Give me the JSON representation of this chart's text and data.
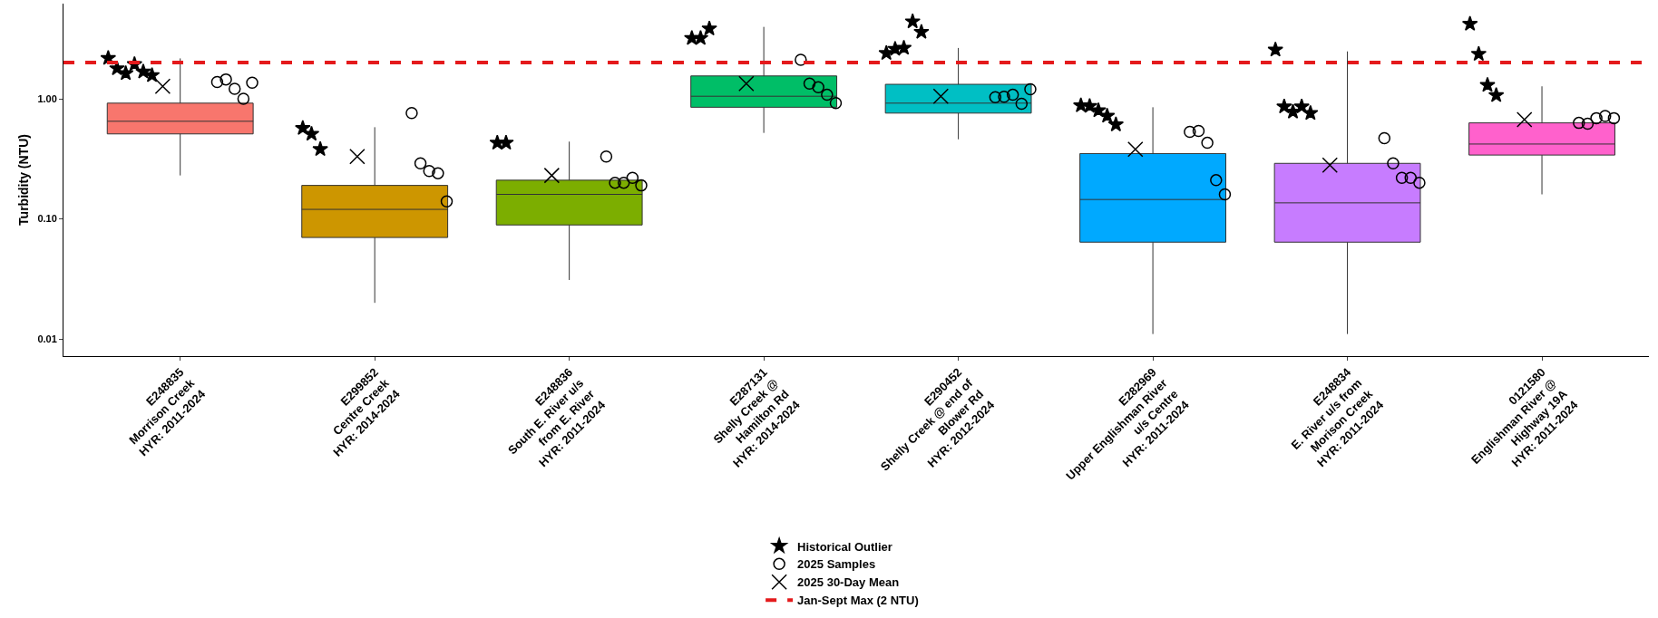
{
  "chart_data": {
    "type": "box",
    "ylabel": "Turbidity (NTU)",
    "categories": [
      "E248835\nMorrison Creek\nHYR: 2011-2024",
      "E299852\nCentre Creek\nHYR: 2014-2024",
      "E248836\nSouth E. River u/s\nfrom E. River\nHYR: 2011-2024",
      "E287131\nShelly Creek @\nHamilton Rd\nHYR: 2014-2024",
      "E290452\nShelly Creek @ end of\nBlower Rd\nHYR: 2012-2024",
      "E282969\nUpper Englishman River\nu/s Centre\nHYR: 2011-2024",
      "E248834\nE. River u/s from\nMorison Creek\nHYR: 2011-2024",
      "0121580\nEnglishman River @\nHighway 19A\nHYR: 2011-2024"
    ],
    "colors": [
      "#f8766d",
      "#cd9600",
      "#7cae00",
      "#00be67",
      "#00bfc4",
      "#00a9ff",
      "#c77cff",
      "#ff61cc"
    ],
    "boxes": [
      {
        "low": 0.23,
        "q1": 0.51,
        "median": 0.65,
        "q3": 0.92,
        "high": 2.17
      },
      {
        "low": 0.02,
        "q1": 0.07,
        "median": 0.12,
        "q3": 0.19,
        "high": 0.58
      },
      {
        "low": 0.031,
        "q1": 0.089,
        "median": 0.16,
        "q3": 0.21,
        "high": 0.44
      },
      {
        "low": 0.52,
        "q1": 0.85,
        "median": 1.05,
        "q3": 1.55,
        "high": 3.97
      },
      {
        "low": 0.46,
        "q1": 0.76,
        "median": 0.92,
        "q3": 1.32,
        "high": 2.65
      },
      {
        "low": 0.011,
        "q1": 0.064,
        "median": 0.145,
        "q3": 0.35,
        "high": 0.85
      },
      {
        "low": 0.011,
        "q1": 0.064,
        "median": 0.136,
        "q3": 0.29,
        "high": 2.48
      },
      {
        "low": 0.16,
        "q1": 0.34,
        "median": 0.42,
        "q3": 0.63,
        "high": 1.27
      }
    ],
    "series": [
      {
        "type": "scatter",
        "name": "Historical Outlier",
        "marker": "star",
        "color": "#000000",
        "x": [
          "E248835\nMorrison Creek\nHYR: 2011-2024",
          "E248835\nMorrison Creek\nHYR: 2011-2024",
          "E248835\nMorrison Creek\nHYR: 2011-2024",
          "E248835\nMorrison Creek\nHYR: 2011-2024",
          "E248835\nMorrison Creek\nHYR: 2011-2024",
          "E248835\nMorrison Creek\nHYR: 2011-2024",
          "E299852\nCentre Creek\nHYR: 2014-2024",
          "E299852\nCentre Creek\nHYR: 2014-2024",
          "E299852\nCentre Creek\nHYR: 2014-2024",
          "E248836\nSouth E. River u/s\nfrom E. River\nHYR: 2011-2024",
          "E248836\nSouth E. River u/s\nfrom E. River\nHYR: 2011-2024",
          "E287131\nShelly Creek @\nHamilton Rd\nHYR: 2014-2024",
          "E287131\nShelly Creek @\nHamilton Rd\nHYR: 2014-2024",
          "E287131\nShelly Creek @\nHamilton Rd\nHYR: 2014-2024",
          "E290452\nShelly Creek @ end of\nBlower Rd\nHYR: 2012-2024",
          "E290452\nShelly Creek @ end of\nBlower Rd\nHYR: 2012-2024",
          "E290452\nShelly Creek @ end of\nBlower Rd\nHYR: 2012-2024",
          "E290452\nShelly Creek @ end of\nBlower Rd\nHYR: 2012-2024",
          "E290452\nShelly Creek @ end of\nBlower Rd\nHYR: 2012-2024",
          "E282969\nUpper Englishman River\nu/s Centre\nHYR: 2011-2024",
          "E282969\nUpper Englishman River\nu/s Centre\nHYR: 2011-2024",
          "E282969\nUpper Englishman River\nu/s Centre\nHYR: 2011-2024",
          "E282969\nUpper Englishman River\nu/s Centre\nHYR: 2011-2024",
          "E282969\nUpper Englishman River\nu/s Centre\nHYR: 2011-2024",
          "E248834\nE. River u/s from\nMorison Creek\nHYR: 2011-2024",
          "E248834\nE. River u/s from\nMorison Creek\nHYR: 2011-2024",
          "E248834\nE. River u/s from\nMorison Creek\nHYR: 2011-2024",
          "E248834\nE. River u/s from\nMorison Creek\nHYR: 2011-2024",
          "E248834\nE. River u/s from\nMorison Creek\nHYR: 2011-2024",
          "0121580\nEnglishman River @\nHighway 19A\nHYR: 2011-2024",
          "0121580\nEnglishman River @\nHighway 19A\nHYR: 2011-2024",
          "0121580\nEnglishman River @\nHighway 19A\nHYR: 2011-2024",
          "0121580\nEnglishman River @\nHighway 19A\nHYR: 2011-2024"
        ],
        "values": [
          2.18,
          1.79,
          1.63,
          1.94,
          1.68,
          1.57,
          0.57,
          0.51,
          0.38,
          0.43,
          0.43,
          3.2,
          3.2,
          3.84,
          2.4,
          2.6,
          2.65,
          4.4,
          3.6,
          0.88,
          0.87,
          0.8,
          0.72,
          0.61,
          2.56,
          0.86,
          0.78,
          0.86,
          0.76,
          4.2,
          2.36,
          1.3,
          1.07
        ]
      },
      {
        "type": "scatter",
        "name": "2025 Samples",
        "marker": "circle",
        "color": "#000000",
        "x": [
          "E248835\nMorrison Creek\nHYR: 2011-2024",
          "E248835\nMorrison Creek\nHYR: 2011-2024",
          "E248835\nMorrison Creek\nHYR: 2011-2024",
          "E248835\nMorrison Creek\nHYR: 2011-2024",
          "E248835\nMorrison Creek\nHYR: 2011-2024",
          "E299852\nCentre Creek\nHYR: 2014-2024",
          "E299852\nCentre Creek\nHYR: 2014-2024",
          "E299852\nCentre Creek\nHYR: 2014-2024",
          "E299852\nCentre Creek\nHYR: 2014-2024",
          "E299852\nCentre Creek\nHYR: 2014-2024",
          "E248836\nSouth E. River u/s\nfrom E. River\nHYR: 2011-2024",
          "E248836\nSouth E. River u/s\nfrom E. River\nHYR: 2011-2024",
          "E248836\nSouth E. River u/s\nfrom E. River\nHYR: 2011-2024",
          "E248836\nSouth E. River u/s\nfrom E. River\nHYR: 2011-2024",
          "E248836\nSouth E. River u/s\nfrom E. River\nHYR: 2011-2024",
          "E287131\nShelly Creek @\nHamilton Rd\nHYR: 2014-2024",
          "E287131\nShelly Creek @\nHamilton Rd\nHYR: 2014-2024",
          "E287131\nShelly Creek @\nHamilton Rd\nHYR: 2014-2024",
          "E287131\nShelly Creek @\nHamilton Rd\nHYR: 2014-2024",
          "E287131\nShelly Creek @\nHamilton Rd\nHYR: 2014-2024",
          "E290452\nShelly Creek @ end of\nBlower Rd\nHYR: 2012-2024",
          "E290452\nShelly Creek @ end of\nBlower Rd\nHYR: 2012-2024",
          "E290452\nShelly Creek @ end of\nBlower Rd\nHYR: 2012-2024",
          "E290452\nShelly Creek @ end of\nBlower Rd\nHYR: 2012-2024",
          "E290452\nShelly Creek @ end of\nBlower Rd\nHYR: 2012-2024",
          "E282969\nUpper Englishman River\nu/s Centre\nHYR: 2011-2024",
          "E282969\nUpper Englishman River\nu/s Centre\nHYR: 2011-2024",
          "E282969\nUpper Englishman River\nu/s Centre\nHYR: 2011-2024",
          "E282969\nUpper Englishman River\nu/s Centre\nHYR: 2011-2024",
          "E282969\nUpper Englishman River\nu/s Centre\nHYR: 2011-2024",
          "E248834\nE. River u/s from\nMorison Creek\nHYR: 2011-2024",
          "E248834\nE. River u/s from\nMorison Creek\nHYR: 2011-2024",
          "E248834\nE. River u/s from\nMorison Creek\nHYR: 2011-2024",
          "E248834\nE. River u/s from\nMorison Creek\nHYR: 2011-2024",
          "E248834\nE. River u/s from\nMorison Creek\nHYR: 2011-2024",
          "0121580\nEnglishman River @\nHighway 19A\nHYR: 2011-2024",
          "0121580\nEnglishman River @\nHighway 19A\nHYR: 2011-2024",
          "0121580\nEnglishman River @\nHighway 19A\nHYR: 2011-2024",
          "0121580\nEnglishman River @\nHighway 19A\nHYR: 2011-2024",
          "0121580\nEnglishman River @\nHighway 19A\nHYR: 2011-2024"
        ],
        "values": [
          1.38,
          1.45,
          1.21,
          1.0,
          1.36,
          0.76,
          0.29,
          0.25,
          0.24,
          0.14,
          0.33,
          0.2,
          0.2,
          0.22,
          0.19,
          2.11,
          1.34,
          1.25,
          1.08,
          0.92,
          1.03,
          1.04,
          1.08,
          0.91,
          1.2,
          0.53,
          0.54,
          0.43,
          0.21,
          0.16,
          0.47,
          0.29,
          0.22,
          0.22,
          0.2,
          0.63,
          0.62,
          0.69,
          0.72,
          0.69
        ]
      },
      {
        "type": "scatter",
        "name": "2025 30-Day Mean",
        "marker": "cross",
        "color": "#000000",
        "x": [
          "E248835\nMorrison Creek\nHYR: 2011-2024",
          "E299852\nCentre Creek\nHYR: 2014-2024",
          "E248836\nSouth E. River u/s\nfrom E. River\nHYR: 2011-2024",
          "E287131\nShelly Creek @\nHamilton Rd\nHYR: 2014-2024",
          "E290452\nShelly Creek @ end of\nBlower Rd\nHYR: 2012-2024",
          "E282969\nUpper Englishman River\nu/s Centre\nHYR: 2011-2024",
          "E248834\nE. River u/s from\nMorison Creek\nHYR: 2011-2024",
          "0121580\nEnglishman River @\nHighway 19A\nHYR: 2011-2024"
        ],
        "values": [
          1.27,
          0.33,
          0.23,
          1.34,
          1.05,
          0.38,
          0.28,
          0.67
        ]
      }
    ],
    "ref_lines": [
      {
        "axis": "y",
        "value": 2,
        "label": "Jan-Sept Max (2 NTU)",
        "color": "#e41a1c",
        "line_style": "dashed"
      }
    ],
    "log": "y",
    "ylim": [
      0.0072,
      6.2
    ],
    "yticks": [
      0.01,
      {
        "value": 0.1,
        "label": "0.10"
      },
      {
        "value": 1,
        "label": "1.00"
      }
    ],
    "grid": false,
    "legend": "bottom"
  }
}
